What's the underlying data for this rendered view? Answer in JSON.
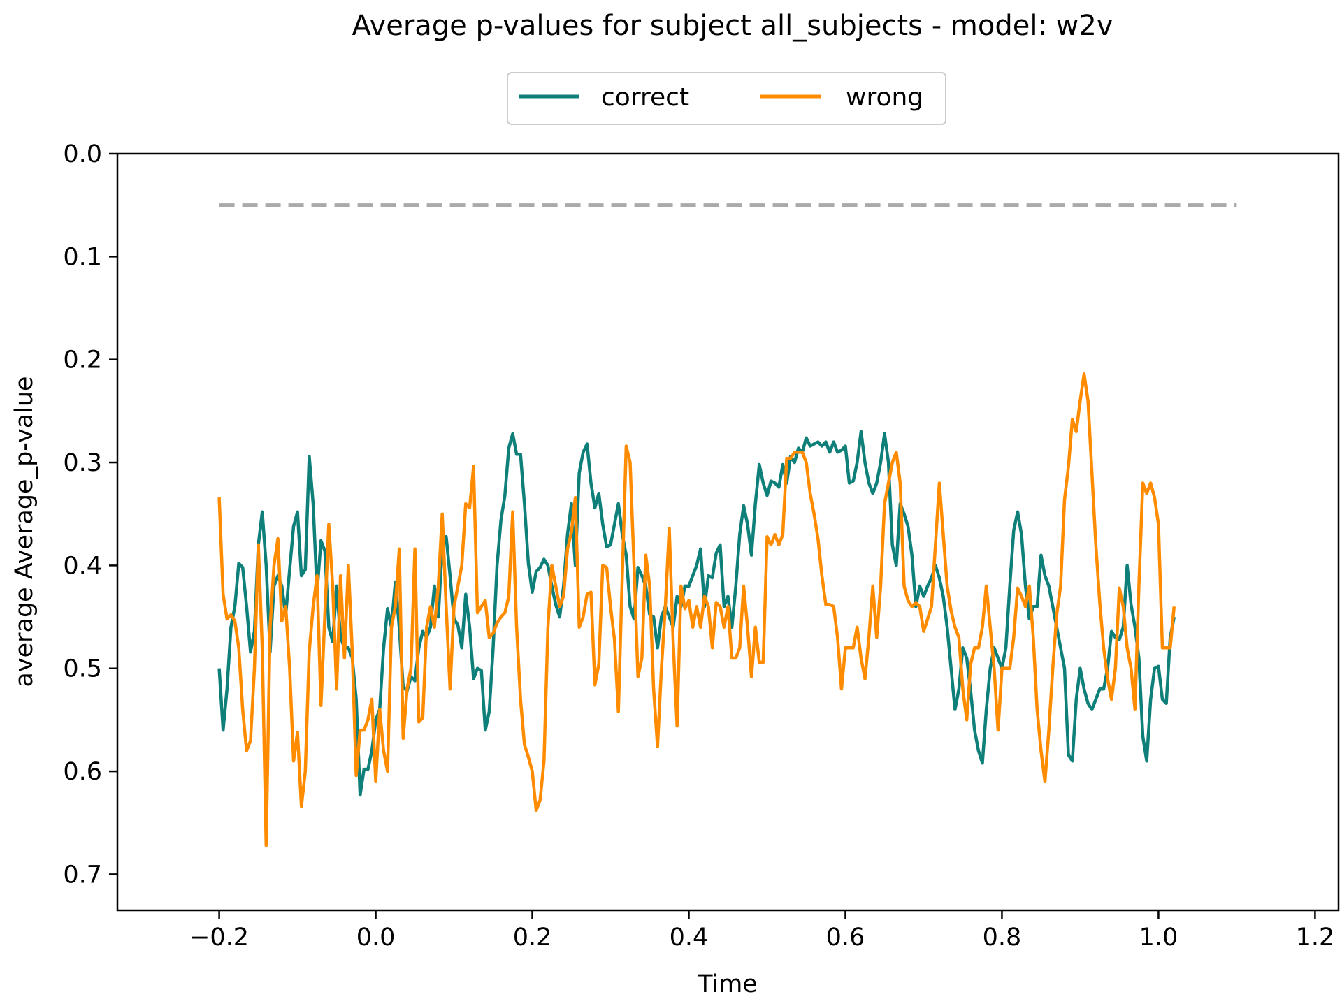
{
  "chart_data": {
    "type": "line",
    "title": "Average p-values for subject all_subjects - model: w2v",
    "xlabel": "Time",
    "ylabel": "average Average_p-value",
    "xlim": [
      -0.33,
      1.23
    ],
    "ylim": [
      0.0,
      0.735
    ],
    "y_inverted": true,
    "grid": false,
    "legend_placement": "top-center, above plot",
    "x_ticks": [
      -0.2,
      0.0,
      0.2,
      0.4,
      0.6,
      0.8,
      1.0,
      1.2
    ],
    "x_tick_labels": [
      "−0.2",
      "0.0",
      "0.2",
      "0.4",
      "0.6",
      "0.8",
      "1.0",
      "1.2"
    ],
    "y_ticks": [
      0.0,
      0.1,
      0.2,
      0.3,
      0.4,
      0.5,
      0.6,
      0.7
    ],
    "y_tick_labels": [
      "0.0",
      "0.1",
      "0.2",
      "0.3",
      "0.4",
      "0.5",
      "0.6",
      "0.7"
    ],
    "threshold": {
      "y": 0.05,
      "x_range": [
        -0.2,
        1.1
      ],
      "color": "#aaaaaa",
      "style": "dashed"
    },
    "x_start": -0.2,
    "x_step": 0.005,
    "series": [
      {
        "name": "correct",
        "color": "#0f7f7a",
        "values": [
          0.5,
          0.56,
          0.52,
          0.46,
          0.44,
          0.398,
          0.402,
          0.44,
          0.484,
          0.464,
          0.38,
          0.348,
          0.4,
          0.484,
          0.42,
          0.41,
          0.42,
          0.448,
          0.404,
          0.362,
          0.348,
          0.41,
          0.404,
          0.294,
          0.34,
          0.426,
          0.376,
          0.386,
          0.46,
          0.474,
          0.42,
          0.47,
          0.48,
          0.48,
          0.49,
          0.53,
          0.623,
          0.598,
          0.598,
          0.58,
          0.55,
          0.54,
          0.48,
          0.442,
          0.46,
          0.416,
          0.46,
          0.518,
          0.522,
          0.508,
          0.512,
          0.48,
          0.464,
          0.47,
          0.46,
          0.42,
          0.45,
          0.38,
          0.372,
          0.41,
          0.452,
          0.458,
          0.48,
          0.428,
          0.46,
          0.51,
          0.5,
          0.502,
          0.56,
          0.542,
          0.48,
          0.4,
          0.356,
          0.332,
          0.286,
          0.272,
          0.292,
          0.292,
          0.34,
          0.398,
          0.426,
          0.406,
          0.402,
          0.394,
          0.4,
          0.42,
          0.438,
          0.45,
          0.42,
          0.37,
          0.34,
          0.4,
          0.31,
          0.29,
          0.282,
          0.32,
          0.344,
          0.33,
          0.36,
          0.382,
          0.38,
          0.36,
          0.34,
          0.37,
          0.39,
          0.44,
          0.452,
          0.402,
          0.41,
          0.42,
          0.448,
          0.45,
          0.48,
          0.45,
          0.44,
          0.45,
          0.46,
          0.43,
          0.44,
          0.42,
          0.42,
          0.41,
          0.4,
          0.384,
          0.44,
          0.41,
          0.412,
          0.388,
          0.38,
          0.44,
          0.43,
          0.46,
          0.42,
          0.37,
          0.342,
          0.36,
          0.39,
          0.34,
          0.302,
          0.32,
          0.332,
          0.318,
          0.32,
          0.324,
          0.302,
          0.32,
          0.294,
          0.3,
          0.286,
          0.29,
          0.276,
          0.284,
          0.282,
          0.28,
          0.284,
          0.28,
          0.29,
          0.28,
          0.29,
          0.288,
          0.284,
          0.32,
          0.318,
          0.3,
          0.27,
          0.3,
          0.32,
          0.33,
          0.32,
          0.3,
          0.272,
          0.3,
          0.38,
          0.4,
          0.34,
          0.35,
          0.362,
          0.39,
          0.44,
          0.42,
          0.43,
          0.42,
          0.412,
          0.4,
          0.412,
          0.43,
          0.46,
          0.5,
          0.54,
          0.52,
          0.48,
          0.49,
          0.522,
          0.56,
          0.58,
          0.592,
          0.54,
          0.5,
          0.48,
          0.49,
          0.5,
          0.48,
          0.42,
          0.366,
          0.348,
          0.37,
          0.42,
          0.452,
          0.44,
          0.44,
          0.39,
          0.41,
          0.42,
          0.44,
          0.46,
          0.48,
          0.5,
          0.584,
          0.59,
          0.53,
          0.5,
          0.52,
          0.534,
          0.54,
          0.53,
          0.52,
          0.52,
          0.5,
          0.464,
          0.47,
          0.472,
          0.46,
          0.4,
          0.438,
          0.46,
          0.49,
          0.566,
          0.59,
          0.53,
          0.5,
          0.498,
          0.53,
          0.534,
          0.47,
          0.45
        ]
      },
      {
        "name": "wrong",
        "color": "#ff8c00",
        "values": [
          0.334,
          0.428,
          0.452,
          0.448,
          0.454,
          0.48,
          0.54,
          0.58,
          0.57,
          0.5,
          0.38,
          0.48,
          0.672,
          0.46,
          0.4,
          0.374,
          0.454,
          0.44,
          0.5,
          0.59,
          0.562,
          0.634,
          0.6,
          0.484,
          0.44,
          0.41,
          0.536,
          0.448,
          0.36,
          0.42,
          0.52,
          0.41,
          0.49,
          0.4,
          0.484,
          0.604,
          0.56,
          0.56,
          0.55,
          0.53,
          0.61,
          0.54,
          0.58,
          0.6,
          0.46,
          0.44,
          0.384,
          0.568,
          0.52,
          0.5,
          0.384,
          0.552,
          0.548,
          0.46,
          0.44,
          0.46,
          0.42,
          0.35,
          0.44,
          0.52,
          0.44,
          0.42,
          0.4,
          0.34,
          0.344,
          0.304,
          0.446,
          0.44,
          0.434,
          0.47,
          0.466,
          0.456,
          0.45,
          0.446,
          0.43,
          0.348,
          0.46,
          0.53,
          0.574,
          0.586,
          0.6,
          0.638,
          0.628,
          0.59,
          0.46,
          0.4,
          0.42,
          0.44,
          0.43,
          0.384,
          0.368,
          0.334,
          0.46,
          0.45,
          0.428,
          0.426,
          0.516,
          0.496,
          0.4,
          0.402,
          0.44,
          0.472,
          0.542,
          0.41,
          0.284,
          0.3,
          0.4,
          0.508,
          0.49,
          0.39,
          0.42,
          0.52,
          0.576,
          0.5,
          0.44,
          0.364,
          0.474,
          0.556,
          0.42,
          0.442,
          0.434,
          0.46,
          0.44,
          0.46,
          0.43,
          0.44,
          0.48,
          0.436,
          0.44,
          0.46,
          0.44,
          0.49,
          0.49,
          0.48,
          0.42,
          0.46,
          0.508,
          0.46,
          0.494,
          0.494,
          0.372,
          0.38,
          0.37,
          0.38,
          0.37,
          0.296,
          0.296,
          0.29,
          0.29,
          0.29,
          0.3,
          0.33,
          0.35,
          0.374,
          0.41,
          0.438,
          0.438,
          0.44,
          0.47,
          0.52,
          0.48,
          0.48,
          0.48,
          0.46,
          0.49,
          0.51,
          0.47,
          0.42,
          0.47,
          0.42,
          0.34,
          0.32,
          0.3,
          0.29,
          0.32,
          0.42,
          0.434,
          0.44,
          0.436,
          0.44,
          0.464,
          0.452,
          0.44,
          0.38,
          0.32,
          0.37,
          0.42,
          0.444,
          0.46,
          0.47,
          0.52,
          0.55,
          0.496,
          0.48,
          0.48,
          0.46,
          0.42,
          0.46,
          0.5,
          0.56,
          0.5,
          0.5,
          0.5,
          0.47,
          0.422,
          0.43,
          0.44,
          0.42,
          0.47,
          0.54,
          0.58,
          0.61,
          0.56,
          0.5,
          0.448,
          0.42,
          0.336,
          0.304,
          0.258,
          0.27,
          0.24,
          0.214,
          0.24,
          0.31,
          0.38,
          0.436,
          0.48,
          0.51,
          0.53,
          0.5,
          0.422,
          0.44,
          0.48,
          0.5,
          0.54,
          0.42,
          0.32,
          0.33,
          0.32,
          0.334,
          0.36,
          0.48,
          0.48,
          0.48,
          0.44
        ]
      }
    ]
  }
}
